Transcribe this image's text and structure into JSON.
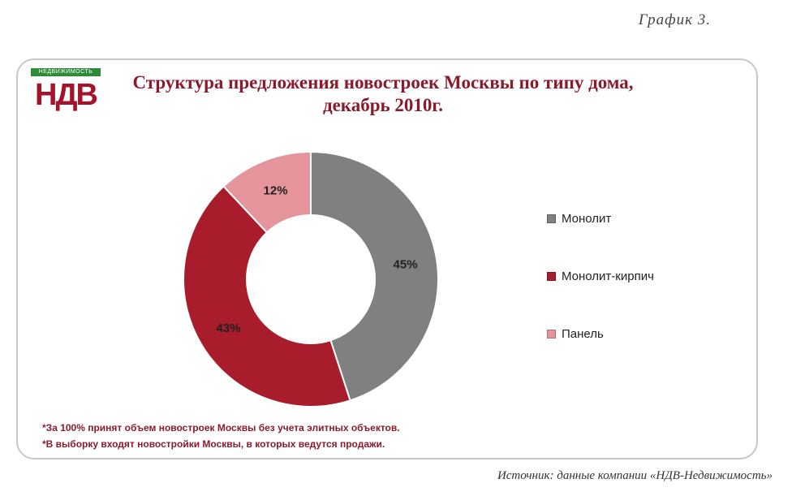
{
  "caption": "График 3.",
  "logo": {
    "band_text": "НЕДВИЖИМОСТЬ",
    "word": "НДВ"
  },
  "chart_data": {
    "type": "pie",
    "title": "Структура предложения новостроек Москвы по типу дома, декабрь 2010г.",
    "donut": true,
    "legend_position": "right",
    "slices": [
      {
        "label": "Монолит",
        "value": 45,
        "display": "45%",
        "color": "#808080"
      },
      {
        "label": "Монолит-кирпич",
        "value": 43,
        "display": "43%",
        "color": "#a81c2c"
      },
      {
        "label": "Панель",
        "value": 12,
        "display": "12%",
        "color": "#e6949c"
      }
    ]
  },
  "notes": [
    "*За 100% принят объем новостроек Москвы без учета элитных объектов.",
    "*В выборку входят новостройки Москвы,  в которых ведутся продажи."
  ],
  "source": "Источник: данные компании «НДВ-Недвижимость»"
}
